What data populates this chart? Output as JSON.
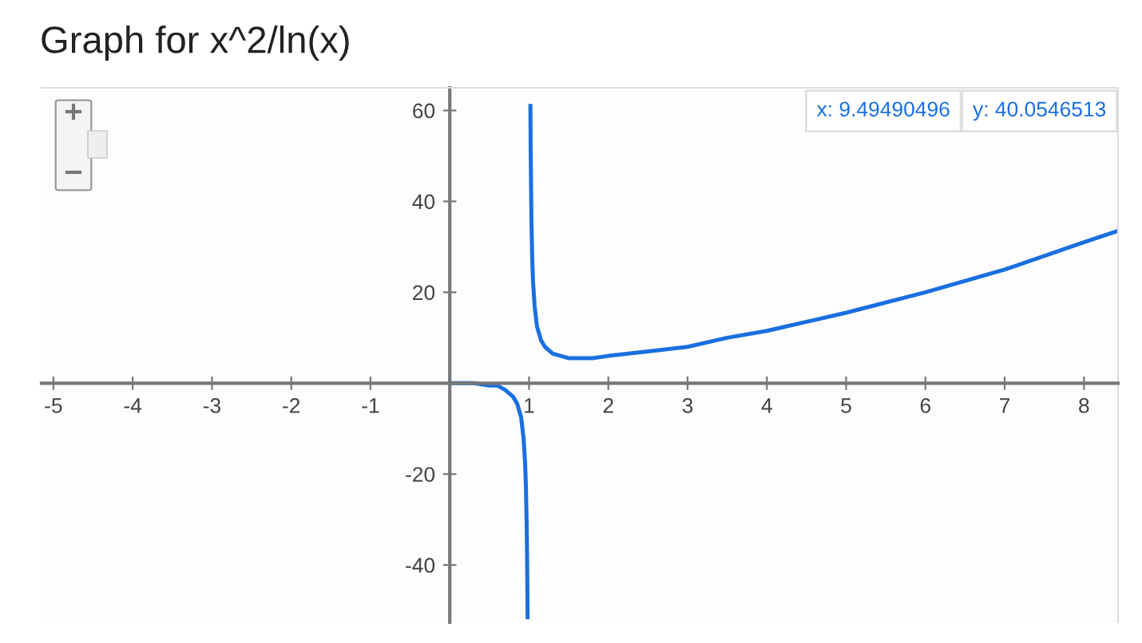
{
  "chart_data": {
    "type": "line",
    "title": "Graph for x^2/ln(x)",
    "series": [
      {
        "color": "#1a6fe0",
        "x": [
          0,
          0.1,
          0.3,
          0.5,
          0.6,
          0.7,
          0.8,
          0.85,
          0.9,
          0.93,
          0.95,
          0.96,
          0.97,
          0.975,
          0.98,
          0.9815
        ],
        "values": [
          0,
          0,
          0,
          -0.5,
          -0.5,
          -1.5,
          -3,
          -4.5,
          -7.5,
          -12,
          -17.5,
          -22.5,
          -31,
          -37.5,
          -47.5,
          -51.5
        ]
      },
      {
        "color": "#1a6fe0",
        "x": [
          1.017,
          1.02,
          1.03,
          1.04,
          1.05,
          1.07,
          1.1,
          1.15,
          1.2,
          1.3,
          1.4,
          1.5,
          1.65,
          1.8,
          2,
          2.5,
          3,
          3.5,
          4,
          5,
          6,
          7,
          8,
          8.43
        ],
        "values": [
          61,
          52.5,
          36,
          27.5,
          22.5,
          17,
          12.5,
          9.5,
          8,
          6.5,
          6,
          5.5,
          5.5,
          5.5,
          6,
          7,
          8,
          10,
          11.5,
          15.5,
          20,
          25,
          31,
          33.5
        ]
      }
    ],
    "xlim": [
      -5.15,
      8.43
    ],
    "ylim": [
      -52.6,
      65
    ],
    "xticks": [
      -5,
      -4,
      -3,
      -2,
      -1,
      1,
      2,
      3,
      4,
      5,
      6,
      7,
      8
    ],
    "yticks": [
      -40,
      -20,
      20,
      40,
      60
    ],
    "annotations": [
      "x: 9.49490496",
      "y: 40.0546513"
    ],
    "grid": false,
    "legend": false
  }
}
